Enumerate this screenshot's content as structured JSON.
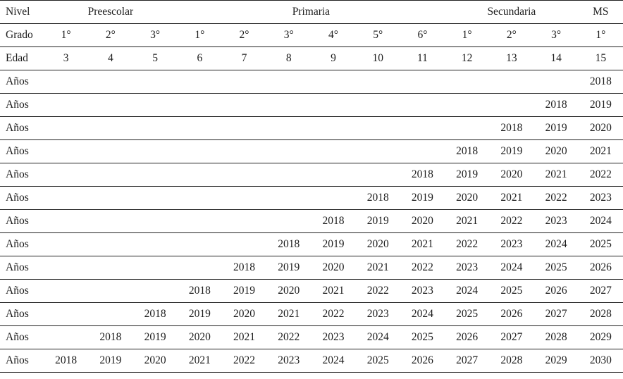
{
  "colors": {
    "text": "#1c1c1c",
    "rule_line": "#222222",
    "background": "#ffffff"
  },
  "table": {
    "row_labels": {
      "nivel": "Nivel",
      "grado": "Grado",
      "edad": "Edad",
      "anios": "Años"
    },
    "levels": [
      {
        "label": "Preescolar",
        "colspan": 3
      },
      {
        "label": "Primaria",
        "colspan": 6
      },
      {
        "label": "Secundaria",
        "colspan": 3
      },
      {
        "label": "MS",
        "colspan": 1
      }
    ],
    "grados": [
      "1°",
      "2°",
      "3°",
      "1°",
      "2°",
      "3°",
      "4°",
      "5°",
      "6°",
      "1°",
      "2°",
      "3°",
      "1°"
    ],
    "edades": [
      "3",
      "4",
      "5",
      "6",
      "7",
      "8",
      "9",
      "10",
      "11",
      "12",
      "13",
      "14",
      "15"
    ],
    "years_rows": [
      {
        "label": "Años",
        "cells": [
          "",
          "",
          "",
          "",
          "",
          "",
          "",
          "",
          "",
          "",
          "",
          "",
          "2018"
        ]
      },
      {
        "label": "Años",
        "cells": [
          "",
          "",
          "",
          "",
          "",
          "",
          "",
          "",
          "",
          "",
          "",
          "2018",
          "2019"
        ]
      },
      {
        "label": "Años",
        "cells": [
          "",
          "",
          "",
          "",
          "",
          "",
          "",
          "",
          "",
          "",
          "2018",
          "2019",
          "2020"
        ]
      },
      {
        "label": "Años",
        "cells": [
          "",
          "",
          "",
          "",
          "",
          "",
          "",
          "",
          "",
          "2018",
          "2019",
          "2020",
          "2021"
        ]
      },
      {
        "label": "Años",
        "cells": [
          "",
          "",
          "",
          "",
          "",
          "",
          "",
          "",
          "2018",
          "2019",
          "2020",
          "2021",
          "2022"
        ]
      },
      {
        "label": "Años",
        "cells": [
          "",
          "",
          "",
          "",
          "",
          "",
          "",
          "2018",
          "2019",
          "2020",
          "2021",
          "2022",
          "2023"
        ]
      },
      {
        "label": "Años",
        "cells": [
          "",
          "",
          "",
          "",
          "",
          "",
          "2018",
          "2019",
          "2020",
          "2021",
          "2022",
          "2023",
          "2024"
        ]
      },
      {
        "label": "Años",
        "cells": [
          "",
          "",
          "",
          "",
          "",
          "2018",
          "2019",
          "2020",
          "2021",
          "2022",
          "2023",
          "2024",
          "2025"
        ]
      },
      {
        "label": "Años",
        "cells": [
          "",
          "",
          "",
          "",
          "2018",
          "2019",
          "2020",
          "2021",
          "2022",
          "2023",
          "2024",
          "2025",
          "2026"
        ]
      },
      {
        "label": "Años",
        "cells": [
          "",
          "",
          "",
          "2018",
          "2019",
          "2020",
          "2021",
          "2022",
          "2023",
          "2024",
          "2025",
          "2026",
          "2027"
        ]
      },
      {
        "label": "Años",
        "cells": [
          "",
          "",
          "2018",
          "2019",
          "2020",
          "2021",
          "2022",
          "2023",
          "2024",
          "2025",
          "2026",
          "2027",
          "2028"
        ]
      },
      {
        "label": "Años",
        "cells": [
          "",
          "2018",
          "2019",
          "2020",
          "2021",
          "2022",
          "2023",
          "2024",
          "2025",
          "2026",
          "2027",
          "2028",
          "2029"
        ]
      },
      {
        "label": "Años",
        "cells": [
          "2018",
          "2019",
          "2020",
          "2021",
          "2022",
          "2023",
          "2024",
          "2025",
          "2026",
          "2027",
          "2028",
          "2029",
          "2030"
        ]
      }
    ]
  }
}
